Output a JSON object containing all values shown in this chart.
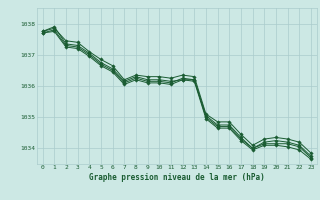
{
  "title": "Graphe pression niveau de la mer (hPa)",
  "bg_color": "#cce8e4",
  "grid_color": "#aacccc",
  "line_color": "#1a5c32",
  "ylim": [
    1033.5,
    1038.5
  ],
  "yticks": [
    1034,
    1035,
    1036,
    1037,
    1038
  ],
  "xticks": [
    0,
    1,
    2,
    3,
    4,
    5,
    6,
    7,
    8,
    9,
    10,
    11,
    12,
    13,
    14,
    15,
    16,
    17,
    18,
    19,
    20,
    21,
    22,
    23
  ],
  "line1": [
    1037.75,
    1037.9,
    1037.35,
    1037.3,
    1037.05,
    1036.75,
    1036.55,
    1036.15,
    1036.3,
    1036.2,
    1036.2,
    1036.15,
    1036.2,
    1036.2,
    1035.05,
    1034.75,
    1034.75,
    1034.35,
    1034.0,
    1034.2,
    1034.25,
    1034.2,
    1034.1,
    1033.75
  ],
  "line2": [
    1037.75,
    1037.85,
    1037.45,
    1037.4,
    1037.1,
    1036.85,
    1036.65,
    1036.2,
    1036.35,
    1036.3,
    1036.3,
    1036.25,
    1036.35,
    1036.3,
    1035.1,
    1034.85,
    1034.85,
    1034.45,
    1034.1,
    1034.3,
    1034.35,
    1034.3,
    1034.2,
    1033.85
  ],
  "line3": [
    1037.7,
    1037.8,
    1037.3,
    1037.25,
    1037.0,
    1036.7,
    1036.5,
    1036.1,
    1036.25,
    1036.15,
    1036.15,
    1036.1,
    1036.25,
    1036.2,
    1035.0,
    1034.7,
    1034.7,
    1034.3,
    1034.0,
    1034.15,
    1034.15,
    1034.15,
    1034.05,
    1033.7
  ],
  "line4": [
    1037.7,
    1037.75,
    1037.25,
    1037.2,
    1036.95,
    1036.65,
    1036.45,
    1036.05,
    1036.2,
    1036.1,
    1036.1,
    1036.05,
    1036.2,
    1036.15,
    1034.95,
    1034.65,
    1034.65,
    1034.25,
    1033.95,
    1034.1,
    1034.1,
    1034.05,
    1033.95,
    1033.65
  ]
}
